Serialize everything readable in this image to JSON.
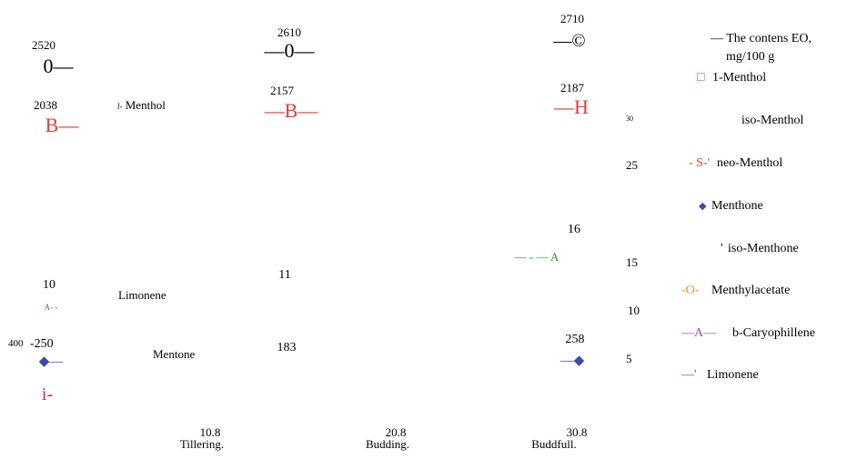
{
  "chart_data": {
    "type": "line",
    "title": "",
    "x": [
      {
        "date": "10.8",
        "stage": "Tillering."
      },
      {
        "date": "20.8",
        "stage": "Budding."
      },
      {
        "date": "30.8",
        "stage": "Buddfull."
      }
    ],
    "right_axis_ticks": [
      "30",
      "25",
      "15",
      "10",
      "5"
    ],
    "legend": {
      "title": "— The contens EO,",
      "unit": "mg/100 g",
      "entries": [
        {
          "marker": "□",
          "label": "1-Menthol",
          "color": "#e23a3a"
        },
        {
          "marker": "",
          "label": "iso-Menthol",
          "color": "#000000"
        },
        {
          "marker": "- S-'",
          "label": "neo-Menthol",
          "color": "#e23a3a"
        },
        {
          "marker": "◆",
          "label": "Menthone",
          "color": "#3d4aa6"
        },
        {
          "marker": "'",
          "label": "iso-Menthone",
          "color": "#000000"
        },
        {
          "marker": "-O-",
          "label": "Menthylacetate",
          "color": "#f0942a"
        },
        {
          "marker": "—A—",
          "label": "b-Caryophillene",
          "color": "#a24aa0"
        },
        {
          "marker": "—'",
          "label": "Limonene",
          "color": "#2e8b3e"
        }
      ]
    },
    "series": [
      {
        "name": "EO",
        "color": "#000000",
        "values": [
          "2520",
          "2610",
          "2710"
        ],
        "markers": [
          "0—",
          "—0—",
          "—©"
        ]
      },
      {
        "name": "l- Menthol",
        "color": "#e23a3a",
        "values": [
          "2038",
          "2157",
          "2187"
        ],
        "markers": [
          "B—",
          "—B—",
          "—H"
        ]
      },
      {
        "name": "Limonene",
        "color": "#2e8b3e",
        "values": [
          "10",
          "11",
          "16"
        ],
        "markers": [
          "A- -",
          "",
          "— - — A"
        ]
      },
      {
        "name": "Mentone",
        "color": "#3d4aa6",
        "values": [
          "-250",
          "183",
          "258"
        ],
        "markers": [
          "◆—",
          "",
          "—◆"
        ]
      }
    ],
    "annotations": {
      "left_stray_value": "400",
      "left_stray_marker": "i-",
      "left_stray_color": "#b0306a"
    }
  }
}
